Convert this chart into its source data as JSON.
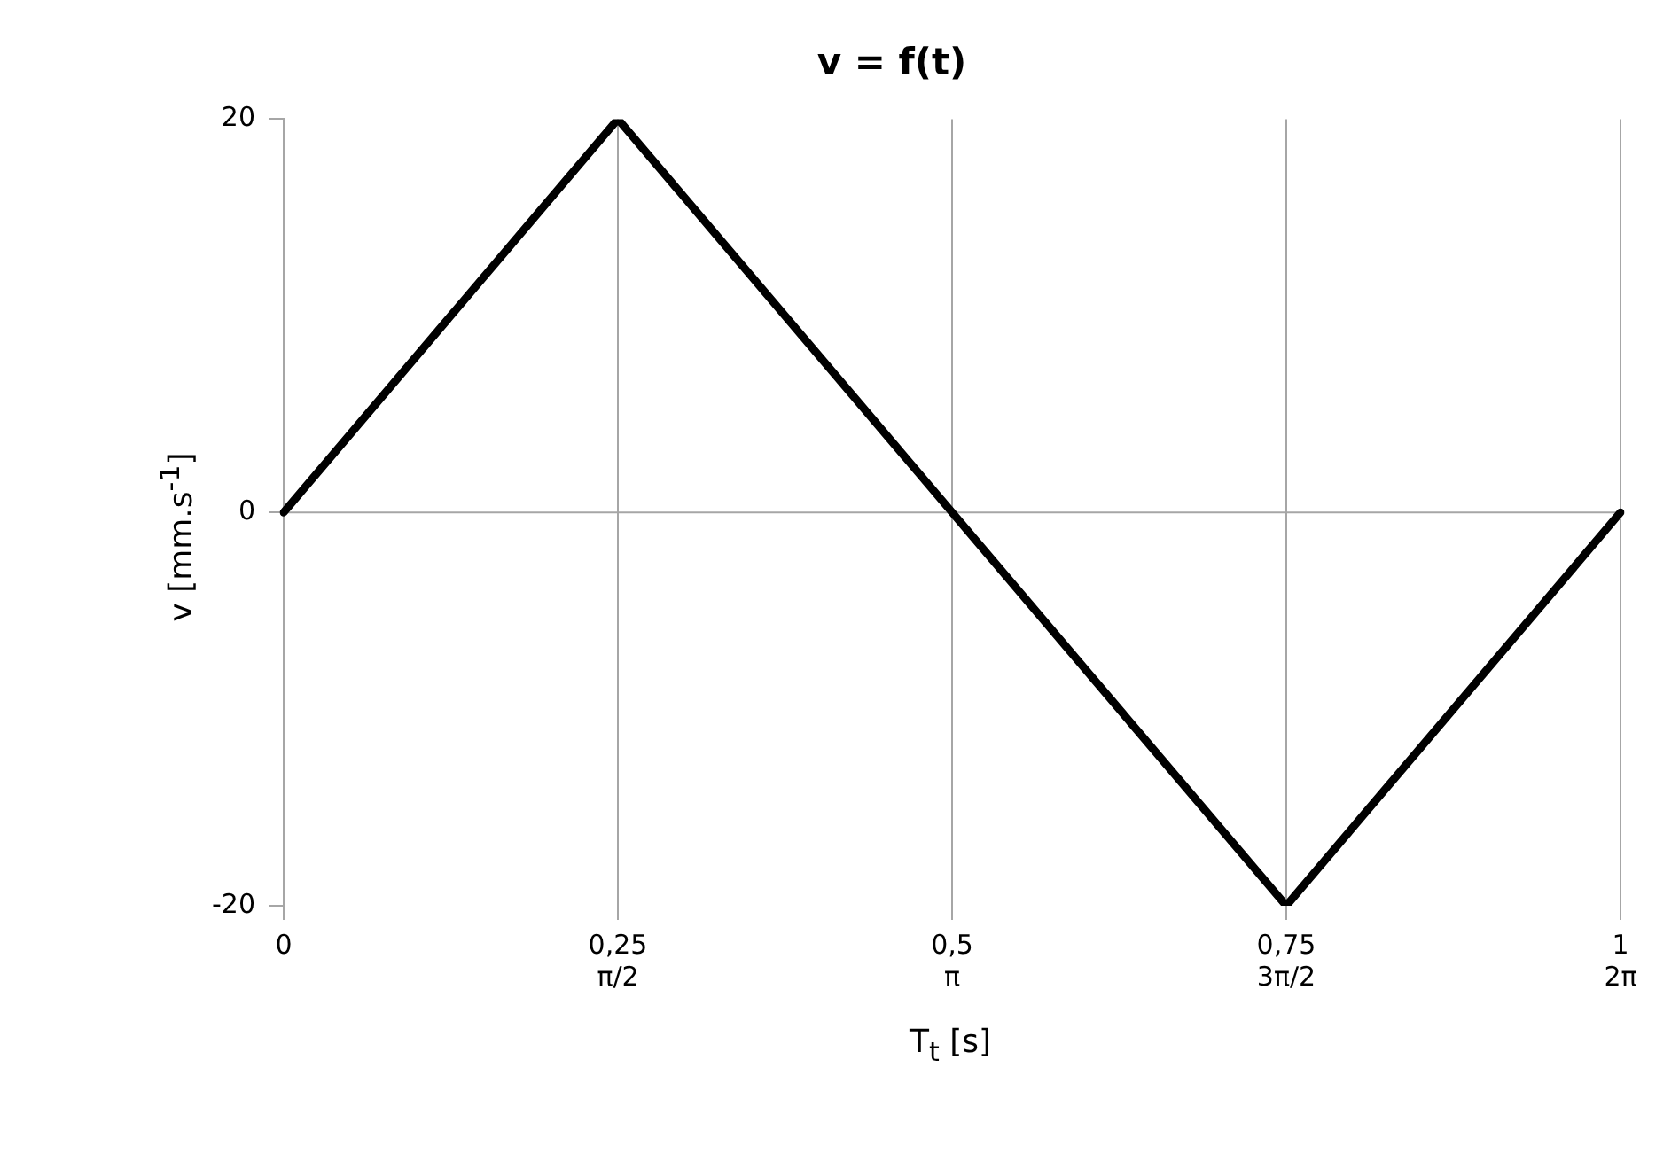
{
  "chart_data": {
    "type": "line",
    "title": "v = f(t)",
    "xlabel": "T$_{t}$ [s]",
    "ylabel": "v [mm.s$^{-1}$]",
    "categories": [
      "0",
      "0,25\nπ/2",
      "0,5\nπ",
      "0,75\n3π/2",
      "1\n2π"
    ],
    "series": [
      {
        "color": "#000000",
        "values": [
          0,
          20,
          0,
          -20,
          0
        ]
      }
    ],
    "ylim": [
      -20,
      20
    ],
    "yticks": [
      -20,
      0,
      20
    ],
    "grid": "x",
    "legend": false,
    "marker": "none",
    "line_style": "solid",
    "ref_lines": [
      {
        "axis": "y",
        "value": 0,
        "color": "#a6a6a6"
      }
    ]
  }
}
